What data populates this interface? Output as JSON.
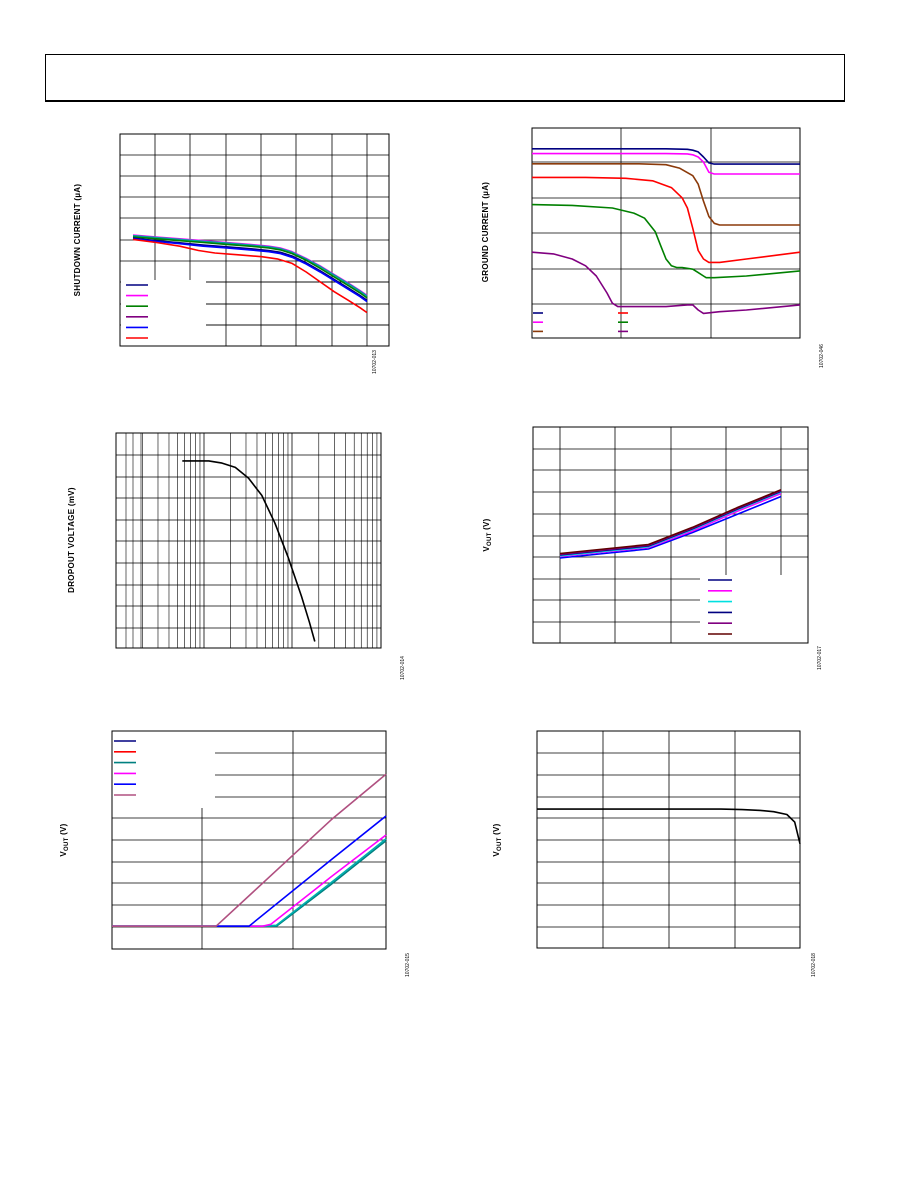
{
  "page": {},
  "chart_data": [
    {
      "type": "line",
      "ylabel": "SHUTDOWN CURRENT (µA)",
      "figure_id": "10702-013",
      "grid": true,
      "series": [
        {
          "color": "#ff00ff",
          "x": [
            0,
            0.1,
            0.2,
            0.3,
            0.4,
            0.5,
            0.58,
            0.63,
            0.68,
            0.74,
            0.8,
            0.86,
            0.92,
            0.97,
            1.0
          ],
          "y": [
            0.69,
            0.675,
            0.66,
            0.645,
            0.63,
            0.615,
            0.6,
            0.585,
            0.555,
            0.5,
            0.44,
            0.37,
            0.3,
            0.24,
            0.2
          ]
        },
        {
          "color": "#00a0a0",
          "x": [
            0,
            0.1,
            0.2,
            0.3,
            0.4,
            0.5,
            0.58,
            0.63,
            0.68,
            0.74,
            0.8,
            0.86,
            0.92,
            0.97,
            1.0
          ],
          "y": [
            0.685,
            0.67,
            0.655,
            0.64,
            0.625,
            0.61,
            0.595,
            0.58,
            0.55,
            0.495,
            0.435,
            0.365,
            0.295,
            0.235,
            0.195
          ]
        },
        {
          "color": "#008000",
          "x": [
            0,
            0.1,
            0.2,
            0.3,
            0.4,
            0.5,
            0.58,
            0.63,
            0.68,
            0.74,
            0.8,
            0.86,
            0.92,
            0.97,
            1.0
          ],
          "y": [
            0.675,
            0.66,
            0.645,
            0.63,
            0.615,
            0.6,
            0.585,
            0.57,
            0.54,
            0.485,
            0.42,
            0.35,
            0.28,
            0.22,
            0.18
          ]
        },
        {
          "color": "#000080",
          "x": [
            0,
            0.1,
            0.2,
            0.3,
            0.4,
            0.5,
            0.58,
            0.63,
            0.68,
            0.74,
            0.8,
            0.86,
            0.92,
            0.97,
            1.0
          ],
          "y": [
            0.665,
            0.645,
            0.628,
            0.61,
            0.595,
            0.58,
            0.565,
            0.55,
            0.52,
            0.465,
            0.4,
            0.33,
            0.26,
            0.2,
            0.16
          ]
        },
        {
          "color": "#0000ff",
          "x": [
            0,
            0.1,
            0.2,
            0.3,
            0.4,
            0.5,
            0.58,
            0.63,
            0.68,
            0.74,
            0.8,
            0.86,
            0.92,
            0.97,
            1.0
          ],
          "y": [
            0.66,
            0.638,
            0.62,
            0.6,
            0.585,
            0.57,
            0.555,
            0.54,
            0.51,
            0.455,
            0.39,
            0.32,
            0.25,
            0.19,
            0.15
          ]
        },
        {
          "color": "#ff0000",
          "x": [
            0,
            0.1,
            0.2,
            0.28,
            0.35,
            0.45,
            0.55,
            0.62,
            0.68,
            0.74,
            0.8,
            0.86,
            0.92,
            0.97,
            1.0
          ],
          "y": [
            0.655,
            0.63,
            0.6,
            0.565,
            0.545,
            0.53,
            0.515,
            0.495,
            0.46,
            0.39,
            0.31,
            0.23,
            0.16,
            0.1,
            0.06
          ]
        }
      ],
      "legend_colors": [
        "#000080",
        "#ff00ff",
        "#008000",
        "#800080",
        "#0000ff",
        "#ff0000"
      ]
    },
    {
      "type": "line",
      "ylabel": "GROUND CURRENT (µA)",
      "figure_id": "10702-046",
      "grid": true,
      "series": [
        {
          "color": "#000080",
          "x": [
            0,
            0.3,
            0.5,
            0.58,
            0.6,
            0.62,
            0.64,
            0.66,
            0.68,
            0.7,
            0.8,
            1.0
          ],
          "y": [
            0.948,
            0.948,
            0.948,
            0.945,
            0.94,
            0.93,
            0.9,
            0.865,
            0.858,
            0.858,
            0.858,
            0.858
          ]
        },
        {
          "color": "#ff00ff",
          "x": [
            0,
            0.3,
            0.5,
            0.58,
            0.6,
            0.62,
            0.64,
            0.66,
            0.68,
            0.7,
            0.8,
            1.0
          ],
          "y": [
            0.92,
            0.92,
            0.92,
            0.918,
            0.913,
            0.9,
            0.87,
            0.81,
            0.8,
            0.8,
            0.8,
            0.8
          ]
        },
        {
          "color": "#8b3a0a",
          "x": [
            0,
            0.2,
            0.4,
            0.5,
            0.55,
            0.6,
            0.62,
            0.64,
            0.66,
            0.68,
            0.7,
            0.75,
            1.0
          ],
          "y": [
            0.86,
            0.86,
            0.86,
            0.855,
            0.835,
            0.79,
            0.74,
            0.64,
            0.55,
            0.51,
            0.5,
            0.5,
            0.5
          ]
        },
        {
          "color": "#ff0000",
          "x": [
            0,
            0.2,
            0.35,
            0.45,
            0.52,
            0.56,
            0.58,
            0.6,
            0.62,
            0.64,
            0.66,
            0.7,
            0.8,
            1.0
          ],
          "y": [
            0.78,
            0.78,
            0.775,
            0.76,
            0.72,
            0.66,
            0.6,
            0.48,
            0.35,
            0.3,
            0.28,
            0.28,
            0.3,
            0.34
          ]
        },
        {
          "color": "#008000",
          "x": [
            0,
            0.15,
            0.3,
            0.38,
            0.42,
            0.46,
            0.48,
            0.5,
            0.52,
            0.54,
            0.56,
            0.6,
            0.62,
            0.64,
            0.65,
            0.66,
            0.68,
            0.8,
            1.0
          ],
          "y": [
            0.62,
            0.615,
            0.6,
            0.57,
            0.54,
            0.46,
            0.38,
            0.3,
            0.26,
            0.25,
            0.25,
            0.24,
            0.22,
            0.2,
            0.19,
            0.19,
            0.19,
            0.2,
            0.23
          ]
        },
        {
          "color": "#800080",
          "x": [
            0,
            0.08,
            0.15,
            0.2,
            0.24,
            0.28,
            0.3,
            0.32,
            0.35,
            0.4,
            0.5,
            0.58,
            0.6,
            0.62,
            0.64,
            0.7,
            0.8,
            1.0
          ],
          "y": [
            0.34,
            0.33,
            0.3,
            0.26,
            0.2,
            0.1,
            0.04,
            0.02,
            0.02,
            0.02,
            0.02,
            0.03,
            0.03,
            0.0,
            -0.02,
            -0.01,
            0.0,
            0.03
          ]
        }
      ],
      "legend_colors": [
        "#000080",
        "#ff00ff",
        "#8b3a0a",
        "#ff0000",
        "#008000",
        "#800080"
      ]
    },
    {
      "type": "line",
      "ylabel": "DROPOUT VOLTAGE (mV)",
      "figure_id": "10702-014",
      "grid": true,
      "log_x": true,
      "series": [
        {
          "color": "#000000",
          "x": [
            0.25,
            0.3,
            0.35,
            0.4,
            0.45,
            0.5,
            0.55,
            0.6,
            0.65,
            0.7,
            0.73,
            0.75
          ],
          "y": [
            0.87,
            0.87,
            0.87,
            0.86,
            0.84,
            0.79,
            0.71,
            0.58,
            0.42,
            0.24,
            0.12,
            0.03
          ]
        }
      ]
    },
    {
      "type": "line",
      "ylabel": "VOUT (V)",
      "figure_id": "10702-017",
      "grid": true,
      "series": [
        {
          "color": "#0000ff",
          "x": [
            0,
            0.2,
            0.4,
            0.6,
            0.8,
            1.0
          ],
          "y": [
            0.28,
            0.31,
            0.34,
            0.45,
            0.57,
            0.69
          ]
        },
        {
          "color": "#ff00ff",
          "x": [
            0,
            0.2,
            0.4,
            0.6,
            0.8,
            1.0
          ],
          "y": [
            0.29,
            0.32,
            0.35,
            0.46,
            0.59,
            0.71
          ]
        },
        {
          "color": "#00e0e0",
          "x": [
            0,
            0.2,
            0.4,
            0.6,
            0.8,
            1.0
          ],
          "y": [
            0.295,
            0.325,
            0.355,
            0.47,
            0.6,
            0.72
          ]
        },
        {
          "color": "#000080",
          "x": [
            0,
            0.2,
            0.4,
            0.6,
            0.8,
            1.0
          ],
          "y": [
            0.3,
            0.33,
            0.36,
            0.475,
            0.605,
            0.725
          ]
        },
        {
          "color": "#800080",
          "x": [
            0,
            0.2,
            0.4,
            0.6,
            0.8,
            1.0
          ],
          "y": [
            0.305,
            0.335,
            0.365,
            0.48,
            0.61,
            0.73
          ]
        },
        {
          "color": "#600000",
          "x": [
            0,
            0.2,
            0.4,
            0.6,
            0.8,
            1.0
          ],
          "y": [
            0.31,
            0.34,
            0.37,
            0.485,
            0.615,
            0.735
          ]
        }
      ],
      "legend_colors": [
        "#000080",
        "#ff00ff",
        "#00e0e0",
        "#000080",
        "#800080",
        "#600000"
      ]
    },
    {
      "type": "line",
      "ylabel": "VOUT (V)",
      "figure_id": "10702-015",
      "grid": true,
      "series": [
        {
          "color": "#008080",
          "x": [
            0,
            0.2,
            0.4,
            0.55,
            0.6,
            0.8,
            1.0
          ],
          "y": [
            0.02,
            0.02,
            0.02,
            0.02,
            0.02,
            0.24,
            0.47
          ]
        },
        {
          "color": "#00b0b0",
          "x": [
            0,
            0.2,
            0.4,
            0.55,
            0.6,
            0.8,
            1.0
          ],
          "y": [
            0.02,
            0.02,
            0.02,
            0.02,
            0.025,
            0.25,
            0.48
          ]
        },
        {
          "color": "#ff00ff",
          "x": [
            0,
            0.2,
            0.4,
            0.55,
            0.58,
            0.8,
            1.0
          ],
          "y": [
            0.02,
            0.02,
            0.02,
            0.02,
            0.03,
            0.28,
            0.5
          ]
        },
        {
          "color": "#0000ff",
          "x": [
            0,
            0.2,
            0.4,
            0.5,
            0.8,
            1.0
          ],
          "y": [
            0.02,
            0.02,
            0.02,
            0.02,
            0.37,
            0.6
          ]
        },
        {
          "color": "#b05080",
          "x": [
            0,
            0.2,
            0.38,
            0.8,
            1.0
          ],
          "y": [
            0.02,
            0.02,
            0.02,
            0.58,
            0.82
          ]
        }
      ],
      "legend_colors": [
        "#000080",
        "#ff0000",
        "#008080",
        "#ff00ff",
        "#0000ff",
        "#b05080"
      ]
    },
    {
      "type": "line",
      "ylabel": "VOUT (V)",
      "figure_id": "10702-018",
      "grid": true,
      "series": [
        {
          "color": "#000000",
          "x": [
            0,
            0.2,
            0.4,
            0.6,
            0.7,
            0.78,
            0.85,
            0.9,
            0.95,
            0.98,
            1.0
          ],
          "y": [
            0.64,
            0.64,
            0.64,
            0.64,
            0.64,
            0.638,
            0.634,
            0.628,
            0.615,
            0.58,
            0.48
          ]
        }
      ]
    }
  ]
}
